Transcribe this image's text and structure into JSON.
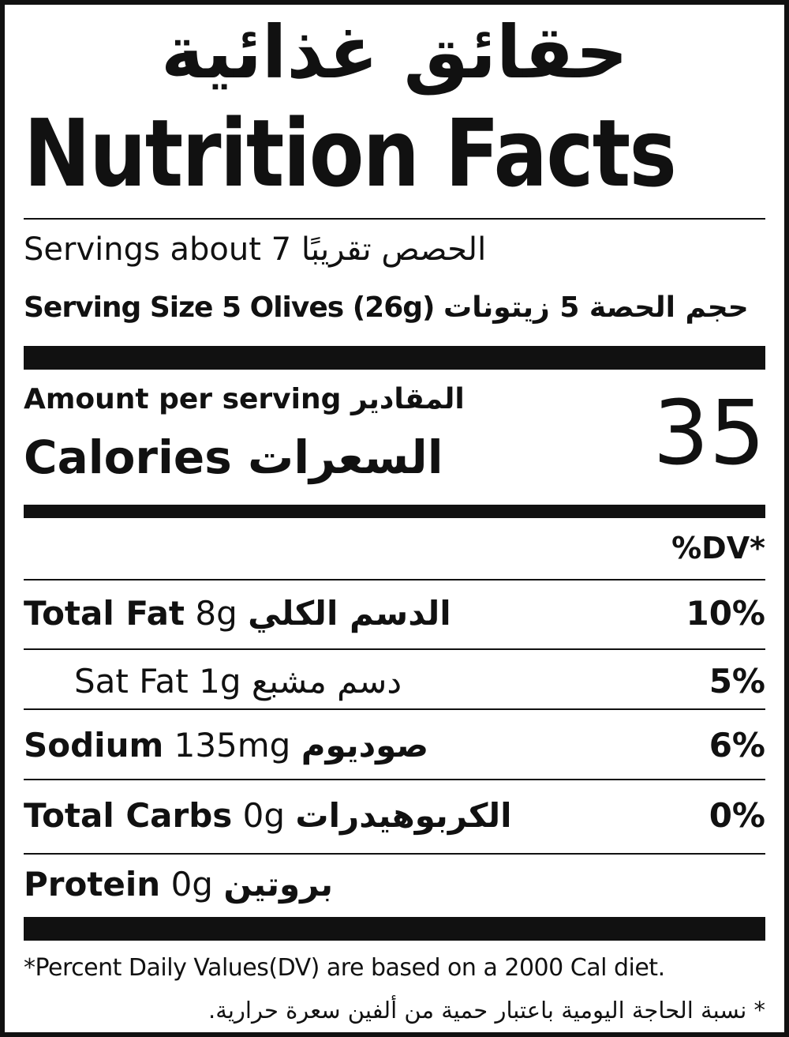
{
  "header": {
    "title_ar": "حقائق غذائية",
    "title_en": "Nutrition Facts"
  },
  "servings": {
    "en": "Servings about 7",
    "ar": "الحصص تقريبًا"
  },
  "serving_size": {
    "en": "Serving Size 5 Olives (26g)",
    "ar": "حجم الحصة 5 زيتونات"
  },
  "calories": {
    "amount_en": "Amount per serving",
    "amount_ar": "المقادير",
    "label_en": "Calories",
    "label_ar": "السعرات",
    "value": 35
  },
  "dv_header": "%DV*",
  "nutrients": [
    {
      "name": "Total Fat",
      "amount": "8g",
      "ar": "الدسم الكلي",
      "dv": "10%"
    },
    {
      "name": "Sat Fat",
      "amount": "1g",
      "ar": "دسم مشبع",
      "dv": "5%"
    },
    {
      "name": "Sodium",
      "amount": "135mg",
      "ar": "صوديوم",
      "dv": "6%"
    },
    {
      "name": "Total Carbs",
      "amount": "0g",
      "ar": "الكربوهيدرات",
      "dv": "0%"
    },
    {
      "name": "Protein",
      "amount": "0g",
      "ar": "بروتين"
    }
  ],
  "footnote": {
    "en": "*Percent Daily Values(DV) are based on a 2000 Cal diet.",
    "ar": "* نسبة الحاجة اليومية باعتبار حمية من ألفين سعرة حرارية."
  }
}
